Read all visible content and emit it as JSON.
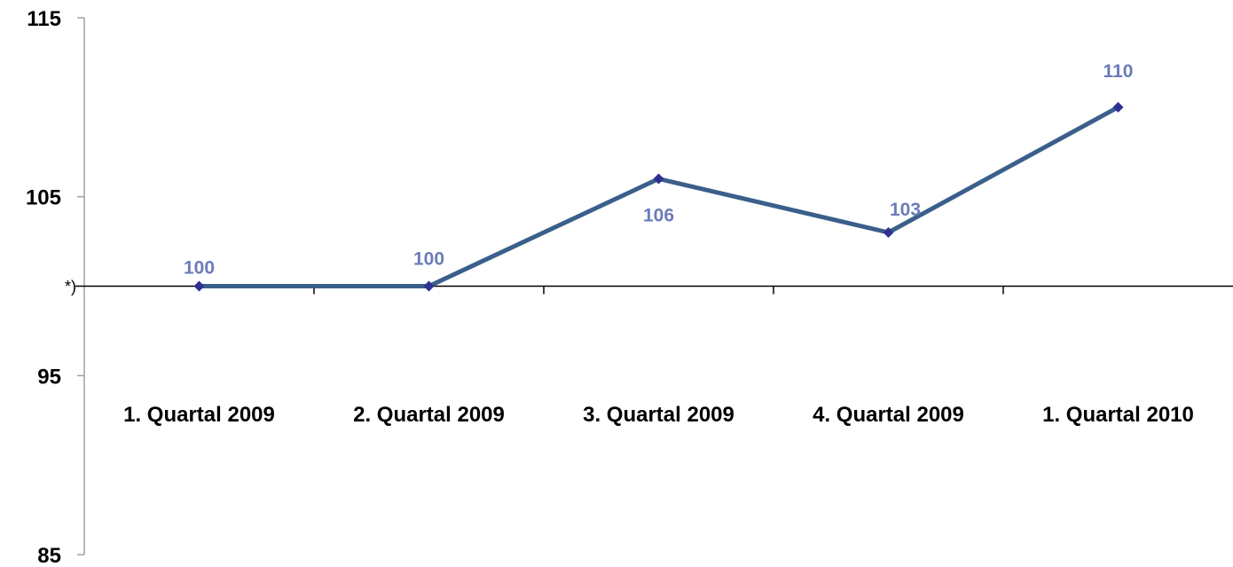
{
  "chart_data": {
    "type": "line",
    "categories": [
      "1. Quartal 2009",
      "2. Quartal 2009",
      "3. Quartal 2009",
      "4. Quartal 2009",
      "1. Quartal 2010"
    ],
    "series": [
      {
        "values": [
          100,
          100,
          106,
          103,
          110
        ]
      }
    ],
    "data_labels": [
      "100",
      "100",
      "106",
      "103",
      "110"
    ],
    "y_ticks": [
      85,
      95,
      105,
      115
    ],
    "y_tick_labels": [
      "85",
      "95",
      "105",
      "115"
    ],
    "ylim": [
      85,
      115
    ],
    "category_axis_crosses_at": 100,
    "category_axis_note": "*)",
    "grid": false,
    "legend": "none",
    "colors": {
      "line": "#3A5F8A",
      "marker": "#2E3192",
      "data_label": "#6B7CB8",
      "value_axis": "#A0A0A0",
      "category_axis": "#000000"
    }
  }
}
